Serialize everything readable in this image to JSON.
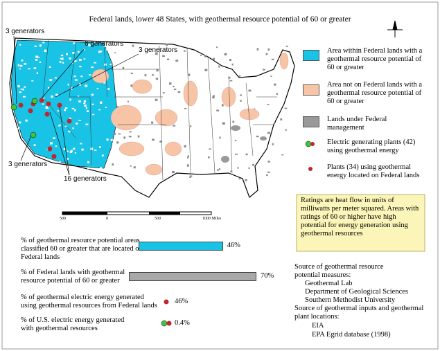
{
  "title": "Federal lands, lower 48 States, with geothermal resource potential of 60 or greater",
  "map_labels": [
    "3 generators",
    "6 generators",
    "3 generators",
    "3 generators",
    "16 generators"
  ],
  "scale_labels": [
    "500",
    "0",
    "500",
    "1000 Miles"
  ],
  "legend": [
    {
      "label": "Area within Federal lands with a geothermal resource potential of 60 or greater"
    },
    {
      "label": "Area not on Federal lands with a  geothermal resource potential of 60 or greater"
    },
    {
      "label": "Lands under Federal management"
    },
    {
      "label": "Electric generating plants (42) using geothermal energy"
    },
    {
      "label": "Plants (34) using geothermal energy located on Federal lands"
    }
  ],
  "note": "Ratings are heat flow in units of milliwatts per meter squared.  Areas with ratings of 60 or higher have high potential for energy generation using geothermal resources",
  "stats": [
    {
      "label": "% of geothermal resource potential areas classified 60 or greater that are located on Federal lands",
      "value": 46,
      "value_label": "46%"
    },
    {
      "label": "% of Federal lands with geothermal resource potential of 60 or greater",
      "value": 70,
      "value_label": "70%"
    },
    {
      "label": "% of geothermal electric energy generated using geothermal resources from Federal lands",
      "value_label": "46%"
    },
    {
      "label": "% of U.S. electric energy generated with geothermal resources",
      "value_label": "0.4%"
    }
  ],
  "sources": [
    "Source of geothermal resource potential measures:",
    "Geothermal Lab",
    "Department of Geological Sciences",
    "Southern Methodist University",
    "Source of geothermal inputs and geothermal plant locations:",
    "EIA",
    "EPA Egrid database (1998)"
  ]
}
